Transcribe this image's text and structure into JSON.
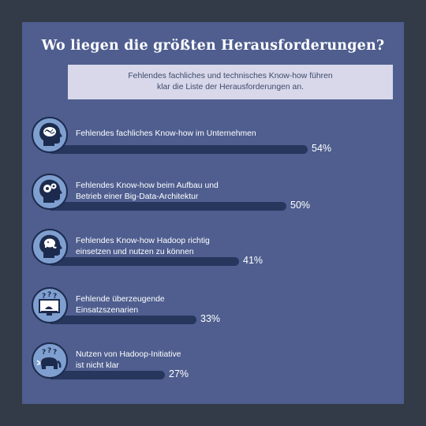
{
  "chart_data": {
    "type": "bar",
    "title": "Wo liegen die größten Herausforderungen?",
    "subtitle": [
      "Fehlendes fachliches und technisches Know-how führen",
      "klar die Liste der Herausforderungen an."
    ],
    "xlim": [
      0,
      100
    ],
    "categories": [
      [
        "Fehlendes fachliches Know-how im Unternehmen"
      ],
      [
        "Fehlendes Know-how beim Aufbau und",
        "Betrieb einer Big-Data-Architektur"
      ],
      [
        "Fehlendes Know-how Hadoop richtig",
        "einsetzen und nutzen zu können"
      ],
      [
        "Fehlende überzeugende",
        "Einsatzszenarien"
      ],
      [
        "Nutzen von Hadoop-Initiative",
        "ist nicht klar"
      ]
    ],
    "values": [
      54,
      50,
      41,
      33,
      27
    ],
    "value_labels": [
      "54%",
      "50%",
      "41%",
      "33%",
      "27%"
    ],
    "icons": [
      "head-brain-icon",
      "head-gears-icon",
      "head-elephant-icon",
      "monitor-question-icon",
      "elephant-question-icon"
    ],
    "colors": {
      "panel": "#4f5e8f",
      "bar": "#27365c",
      "icon_fill": "#7f9fd0",
      "icon_border": "#1c2b4d"
    }
  }
}
